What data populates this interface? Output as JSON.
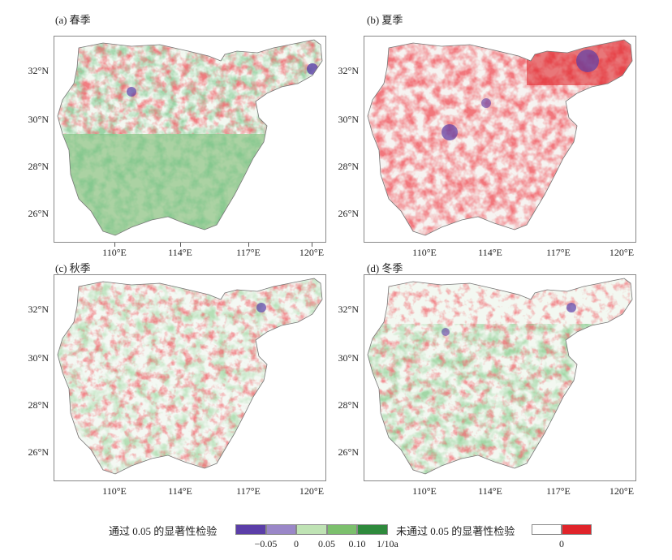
{
  "panels": [
    {
      "label": "(a) 春季"
    },
    {
      "label": "(b) 夏季"
    },
    {
      "label": "(c) 秋季"
    },
    {
      "label": "(d) 冬季"
    }
  ],
  "lat_labels": [
    "32°N",
    "30°N",
    "28°N",
    "26°N"
  ],
  "lon_labels": [
    "110°E",
    "114°E",
    "117°E",
    "120°E"
  ],
  "legend": {
    "passed_label": "通过 0.05 的显著性检验",
    "passed_colors": [
      "#5b3ea8",
      "#9a87c8",
      "#bfe3b4",
      "#7cc06d",
      "#2e8a3c"
    ],
    "passed_ticks": [
      "−0.05",
      "0",
      "0.05",
      "0.10",
      "1/10a"
    ],
    "failed_label": "未通过 0.05 的显著性检验",
    "failed_colors": [
      "#ffffff",
      "#e0242a"
    ],
    "failed_ticks": [
      "0"
    ]
  }
}
